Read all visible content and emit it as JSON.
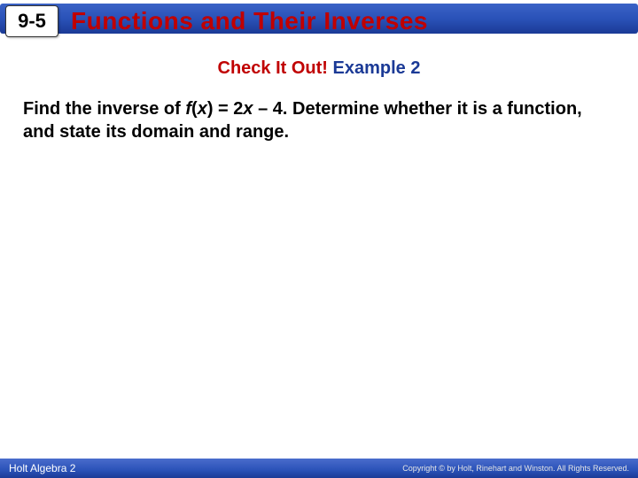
{
  "header": {
    "section_number": "9-5",
    "title": "Functions and Their Inverses",
    "bar_gradient_top": "#3b63c6",
    "bar_gradient_bottom": "#1b3a96",
    "title_color": "#c00000",
    "badge_bg": "#ffffff"
  },
  "subtitle": {
    "red_text": "Check It Out!",
    "blue_text": " Example 2",
    "red_color": "#c00000",
    "blue_color": "#1b3a96"
  },
  "problem": {
    "lead": "Find the inverse of ",
    "fn_f": "f",
    "paren_open": "(",
    "var_x": "x",
    "rhs": ") = 2",
    "var_x2": "x",
    "tail": " – 4.  Determine whether it is a function, and state its domain and range."
  },
  "footer": {
    "left": "Holt Algebra 2",
    "copyright": "Copyright © by Holt, Rinehart and Winston. All Rights Reserved.",
    "bar_color": "#2a52b8",
    "text_color": "#ffffff"
  }
}
